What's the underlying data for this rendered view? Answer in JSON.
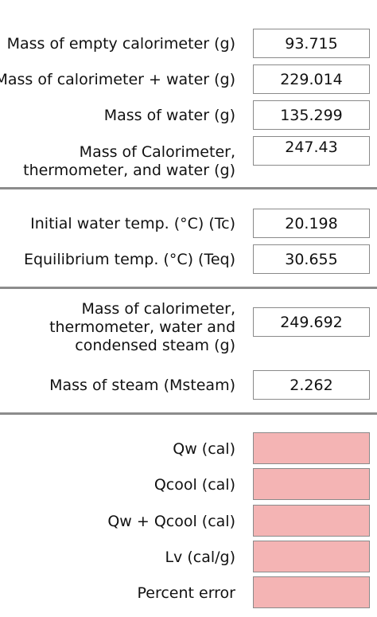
{
  "section1": {
    "empty_calorimeter": {
      "label": "Mass of empty calorimeter (g)",
      "value": "93.715"
    },
    "calorimeter_water": {
      "label": "Mass of calorimeter + water (g)",
      "value": "229.014"
    },
    "water": {
      "label": "Mass of water (g)",
      "value": "135.299"
    },
    "cal_thermo_water": {
      "label_line1": "Mass of Calorimeter,",
      "label_line2": "thermometer, and water (g)",
      "value": "247.43"
    }
  },
  "section2": {
    "initial_temp": {
      "label": "Initial water temp. (°C) (Tc)",
      "value": "20.198"
    },
    "equilibrium_temp": {
      "label": "Equilibrium temp. (°C) (Teq)",
      "value": "30.655"
    }
  },
  "section3": {
    "cal_thermo_water_steam": {
      "label_line1": "Mass of calorimeter,",
      "label_line2": "thermometer, water and",
      "label_line3": "condensed steam (g)",
      "value": "249.692"
    },
    "steam": {
      "label": "Mass of steam (Msteam)",
      "value": "2.262"
    }
  },
  "results": {
    "qw": {
      "label": "Qw (cal)",
      "value": ""
    },
    "qcool": {
      "label": "Qcool (cal)",
      "value": ""
    },
    "qw_plus_qcool": {
      "label": "Qw + Qcool (cal)",
      "value": ""
    },
    "lv": {
      "label": "Lv (cal/g)",
      "value": ""
    },
    "percent_error": {
      "label": "Percent error",
      "value": ""
    }
  },
  "colors": {
    "result_field_bg": "#f4b4b4",
    "field_border": "#8a8a8a",
    "divider": "#8c8c8c"
  }
}
